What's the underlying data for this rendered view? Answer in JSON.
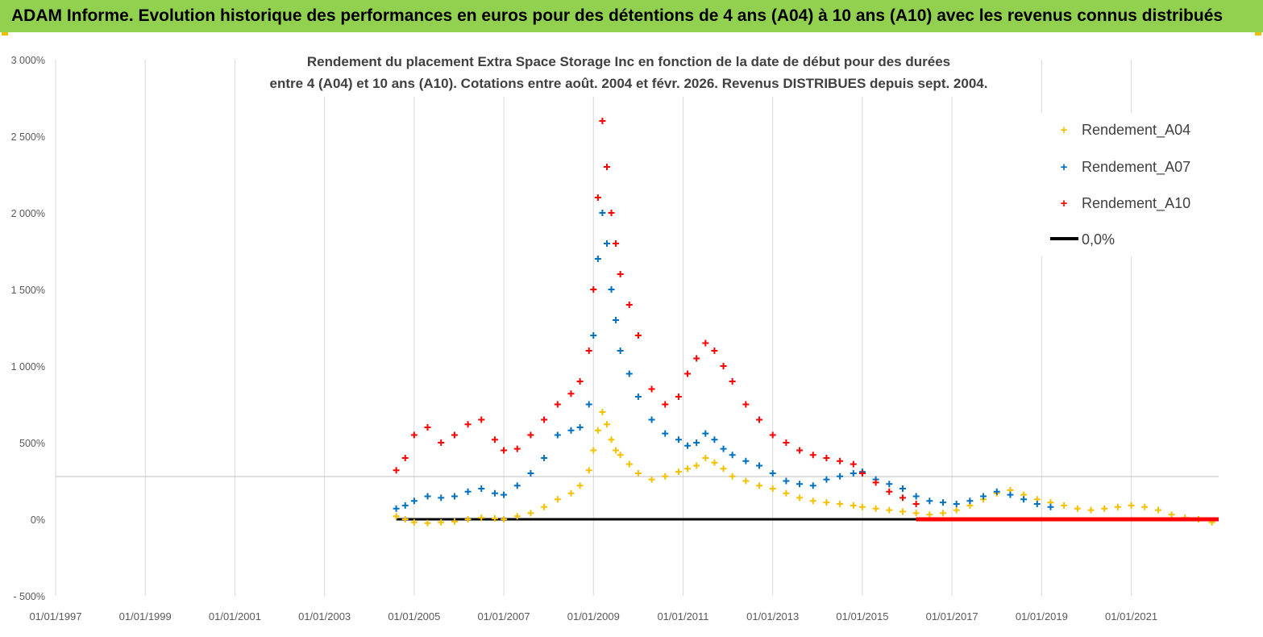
{
  "header": {
    "title": "ADAM Informe. Evolution historique des performances en euros pour des détentions de 4 ans (A04) à 10 ans (A10) avec les revenus connus distribués"
  },
  "colors": {
    "banner": "#92d050",
    "a04": "#f5c000",
    "a07": "#0070c0",
    "a10": "#ff0000",
    "zero": "#000000",
    "grid": "#d9d9d9"
  },
  "chart_data": {
    "type": "scatter",
    "title_lines": [
      "Rendement du placement Extra Space Storage Inc en fonction de la date de début pour des durées",
      "entre 4 (A04) et 10 ans (A10).  Cotations entre août. 2004 et févr. 2026. Revenus DISTRIBUES depuis sept. 2004."
    ],
    "x_ticks": [
      "01/01/1997",
      "01/01/1999",
      "01/01/2001",
      "01/01/2003",
      "01/01/2005",
      "01/01/2007",
      "01/01/2009",
      "01/01/2011",
      "01/01/2013",
      "01/01/2015",
      "01/01/2017",
      "01/01/2019",
      "01/01/2021"
    ],
    "xlim": [
      1997.0,
      2022.95
    ],
    "ylim": [
      -500,
      3000
    ],
    "y_ticks": [
      {
        "value": -500,
        "label": "- 500%"
      },
      {
        "value": 0,
        "label": "0%"
      },
      {
        "value": 500,
        "label": "500%"
      },
      {
        "value": 1000,
        "label": "1 000%"
      },
      {
        "value": 1500,
        "label": "1 500%"
      },
      {
        "value": 2000,
        "label": "2 000%"
      },
      {
        "value": 2500,
        "label": "2 500%"
      },
      {
        "value": 3000,
        "label": "3 000%"
      }
    ],
    "legend": [
      "Rendement_A04",
      "Rendement_A07",
      "Rendement_A10",
      "0,0%"
    ],
    "series": [
      {
        "name": "Rendement_A04",
        "x": [
          2004.6,
          2004.8,
          2005.0,
          2005.3,
          2005.6,
          2005.9,
          2006.2,
          2006.5,
          2006.8,
          2007.0,
          2007.3,
          2007.6,
          2007.9,
          2008.2,
          2008.5,
          2008.7,
          2008.9,
          2009.0,
          2009.1,
          2009.2,
          2009.3,
          2009.4,
          2009.5,
          2009.6,
          2009.8,
          2010.0,
          2010.3,
          2010.6,
          2010.9,
          2011.1,
          2011.3,
          2011.5,
          2011.7,
          2011.9,
          2012.1,
          2012.4,
          2012.7,
          2013.0,
          2013.3,
          2013.6,
          2013.9,
          2014.2,
          2014.5,
          2014.8,
          2015.0,
          2015.3,
          2015.6,
          2015.9,
          2016.2,
          2016.5,
          2016.8,
          2017.1,
          2017.4,
          2017.7,
          2018.0,
          2018.3,
          2018.6,
          2018.9,
          2019.2,
          2019.5,
          2019.8,
          2020.1,
          2020.4,
          2020.7,
          2021.0,
          2021.3,
          2021.6,
          2021.9,
          2022.2,
          2022.5,
          2022.8
        ],
        "y": [
          20,
          0,
          -20,
          -25,
          -20,
          -15,
          0,
          10,
          5,
          0,
          20,
          40,
          80,
          130,
          170,
          220,
          320,
          450,
          580,
          700,
          620,
          520,
          450,
          420,
          360,
          300,
          260,
          280,
          310,
          330,
          350,
          400,
          370,
          330,
          280,
          250,
          220,
          200,
          170,
          140,
          120,
          110,
          100,
          90,
          80,
          70,
          60,
          50,
          40,
          30,
          40,
          60,
          90,
          130,
          170,
          190,
          160,
          130,
          110,
          90,
          70,
          60,
          70,
          80,
          90,
          80,
          60,
          30,
          10,
          0,
          -20
        ]
      },
      {
        "name": "Rendement_A07",
        "x": [
          2004.6,
          2004.8,
          2005.0,
          2005.3,
          2005.6,
          2005.9,
          2006.2,
          2006.5,
          2006.8,
          2007.0,
          2007.3,
          2007.6,
          2007.9,
          2008.2,
          2008.5,
          2008.7,
          2008.9,
          2009.0,
          2009.1,
          2009.2,
          2009.3,
          2009.4,
          2009.5,
          2009.6,
          2009.8,
          2010.0,
          2010.3,
          2010.6,
          2010.9,
          2011.1,
          2011.3,
          2011.5,
          2011.7,
          2011.9,
          2012.1,
          2012.4,
          2012.7,
          2013.0,
          2013.3,
          2013.6,
          2013.9,
          2014.2,
          2014.5,
          2014.8,
          2015.0,
          2015.3,
          2015.6,
          2015.9,
          2016.2,
          2016.5,
          2016.8,
          2017.1,
          2017.4,
          2017.7,
          2018.0,
          2018.3,
          2018.6,
          2018.9,
          2019.2
        ],
        "y": [
          70,
          90,
          120,
          150,
          140,
          150,
          180,
          200,
          170,
          160,
          220,
          300,
          400,
          550,
          580,
          600,
          750,
          1200,
          1700,
          2000,
          1800,
          1500,
          1300,
          1100,
          950,
          800,
          650,
          560,
          520,
          480,
          500,
          560,
          520,
          460,
          420,
          380,
          350,
          300,
          250,
          230,
          220,
          260,
          280,
          300,
          310,
          260,
          230,
          200,
          150,
          120,
          110,
          100,
          120,
          150,
          180,
          160,
          130,
          100,
          80
        ]
      },
      {
        "name": "Rendement_A10",
        "x": [
          2004.6,
          2004.8,
          2005.0,
          2005.3,
          2005.6,
          2005.9,
          2006.2,
          2006.5,
          2006.8,
          2007.0,
          2007.3,
          2007.6,
          2007.9,
          2008.2,
          2008.5,
          2008.7,
          2008.9,
          2009.0,
          2009.1,
          2009.2,
          2009.3,
          2009.4,
          2009.5,
          2009.6,
          2009.8,
          2010.0,
          2010.3,
          2010.6,
          2010.9,
          2011.1,
          2011.3,
          2011.5,
          2011.7,
          2011.9,
          2012.1,
          2012.4,
          2012.7,
          2013.0,
          2013.3,
          2013.6,
          2013.9,
          2014.2,
          2014.5,
          2014.8,
          2015.0,
          2015.3,
          2015.6,
          2015.9,
          2016.2
        ],
        "y": [
          320,
          400,
          550,
          600,
          500,
          550,
          620,
          650,
          520,
          450,
          460,
          550,
          650,
          750,
          820,
          900,
          1100,
          1500,
          2100,
          2600,
          2300,
          2000,
          1800,
          1600,
          1400,
          1200,
          850,
          750,
          800,
          950,
          1050,
          1150,
          1100,
          1000,
          900,
          750,
          650,
          550,
          500,
          450,
          420,
          400,
          380,
          360,
          300,
          240,
          180,
          140,
          100
        ]
      }
    ],
    "zero_line": {
      "x_start": 2004.6,
      "x_end": 2022.95,
      "value": 0
    }
  }
}
